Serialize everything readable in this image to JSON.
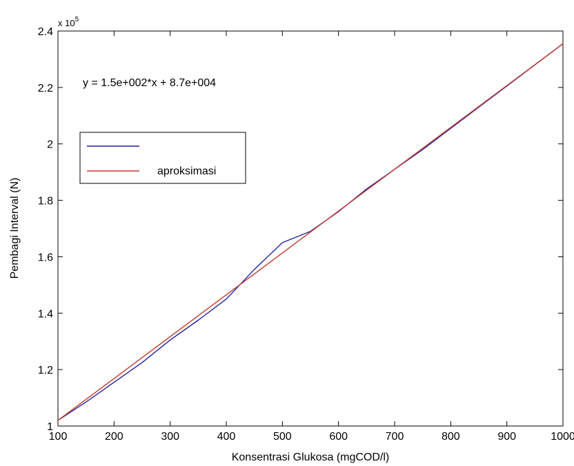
{
  "chart_data": {
    "type": "line",
    "xlabel": "Konsentrasi Glukosa (mgCOD/l)",
    "ylabel": "Pembagi Interval (N)",
    "xlim": [
      100,
      1000
    ],
    "ylim": [
      100000,
      240000
    ],
    "x_ticks": [
      100,
      200,
      300,
      400,
      500,
      600,
      700,
      800,
      900,
      1000
    ],
    "x_tick_labels": [
      "100",
      "200",
      "300",
      "400",
      "500",
      "600",
      "700",
      "800",
      "900",
      "1000"
    ],
    "y_ticks": [
      100000,
      120000,
      140000,
      160000,
      180000,
      200000,
      220000,
      240000
    ],
    "y_tick_labels": [
      "1",
      "1.2",
      "1.4",
      "1.6",
      "1.8",
      "2",
      "2.2",
      "2.4"
    ],
    "y_multiplier": {
      "base": "x 10",
      "exponent": "5"
    },
    "annotation": "y = 1.5e+002*x + 8.7e+004",
    "grid": false,
    "legend_position": "upper-left",
    "series": [
      {
        "name": "",
        "color": "#1f1fa0",
        "x": [
          100,
          150,
          200,
          250,
          300,
          350,
          400,
          450,
          500,
          550,
          600,
          650,
          700,
          750,
          800,
          850,
          900,
          950,
          1000
        ],
        "y": [
          102000,
          108500,
          115500,
          122500,
          130500,
          137500,
          145000,
          155500,
          165000,
          169000,
          176000,
          184000,
          191000,
          198000,
          205500,
          213000,
          220500,
          228000,
          235500
        ]
      },
      {
        "name": "aproksimasi",
        "color": "#c0392b",
        "x": [
          100,
          1000
        ],
        "y": [
          102000,
          235500
        ]
      }
    ]
  }
}
